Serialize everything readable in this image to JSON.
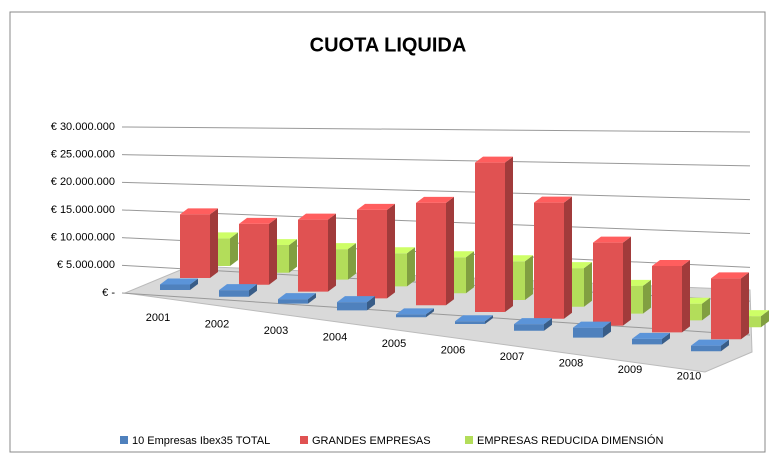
{
  "chart_data": {
    "type": "bar3d",
    "title": "CUOTA  LIQUIDA",
    "categories": [
      "2001",
      "2002",
      "2003",
      "2004",
      "2005",
      "2006",
      "2007",
      "2008",
      "2009",
      "2010"
    ],
    "series": [
      {
        "name": "10 Empresas Ibex35  TOTAL",
        "color": "#4f81bd",
        "values": [
          1000000,
          1200000,
          800000,
          1500000,
          500000,
          500000,
          1200000,
          1800000,
          1000000,
          1000000
        ]
      },
      {
        "name": "GRANDES EMPRESAS",
        "color": "#e05252",
        "values": [
          11500000,
          11000000,
          13000000,
          16000000,
          18500000,
          27000000,
          21000000,
          15000000,
          12000000,
          11000000
        ]
      },
      {
        "name": "EMPRESAS REDUCIDA DIMENSIÓN",
        "color": "#b3dd5a",
        "values": [
          5000000,
          5000000,
          5500000,
          6000000,
          6500000,
          7000000,
          7000000,
          5000000,
          3000000,
          2000000
        ]
      }
    ],
    "ylim": [
      0,
      30000000
    ],
    "yticks": [
      {
        "value": 0,
        "label": "€ -"
      },
      {
        "value": 5000000,
        "label": "€ 5.000.000"
      },
      {
        "value": 10000000,
        "label": "€ 10.000.000"
      },
      {
        "value": 15000000,
        "label": "€ 15.000.000"
      },
      {
        "value": 20000000,
        "label": "€ 20.000.000"
      },
      {
        "value": 25000000,
        "label": "€ 25.000.000"
      },
      {
        "value": 30000000,
        "label": "€ 30.000.000"
      }
    ],
    "grid": true,
    "legend": "bottom"
  }
}
